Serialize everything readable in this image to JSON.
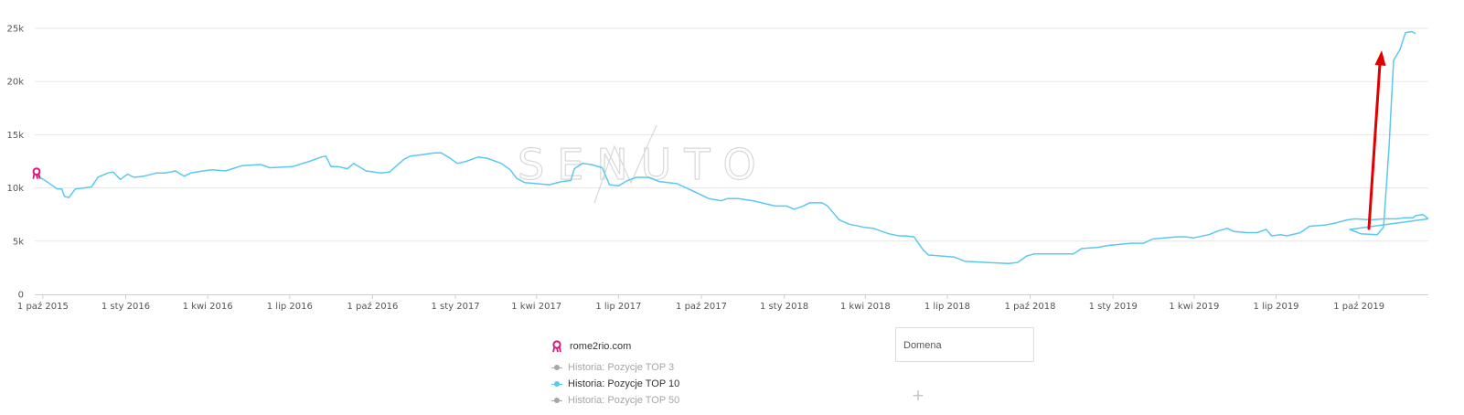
{
  "chart_data": {
    "type": "line",
    "watermark": "SENUTO",
    "y_ticks": [
      "0",
      "5k",
      "10k",
      "15k",
      "20k",
      "25k"
    ],
    "ylim": [
      0,
      25000
    ],
    "x_tick_labels": [
      "1 paź 2015",
      "1 sty 2016",
      "1 kwi 2016",
      "1 lip 2016",
      "1 paź 2016",
      "1 sty 2017",
      "1 kwi 2017",
      "1 lip 2017",
      "1 paź 2017",
      "1 sty 2018",
      "1 kwi 2018",
      "1 lip 2018",
      "1 paź 2018",
      "1 sty 2019",
      "1 kwi 2019",
      "1 lip 2019",
      "1 paź 2019"
    ],
    "xlim": [
      "2015-09-22",
      "2019-12-17"
    ],
    "grid": true,
    "series": [
      {
        "name": "Historia: Pozycje TOP 10",
        "color": "#5bc8f0",
        "points": [
          [
            "2015-09-24",
            11200
          ],
          [
            "2015-10-07",
            10500
          ],
          [
            "2015-10-17",
            9900
          ],
          [
            "2015-10-22",
            9900
          ],
          [
            "2015-10-25",
            9200
          ],
          [
            "2015-10-30",
            9100
          ],
          [
            "2015-11-06",
            9900
          ],
          [
            "2015-11-16",
            10000
          ],
          [
            "2015-11-24",
            10100
          ],
          [
            "2015-12-01",
            11000
          ],
          [
            "2015-12-12",
            11400
          ],
          [
            "2015-12-18",
            11500
          ],
          [
            "2015-12-26",
            10800
          ],
          [
            "2016-01-03",
            11300
          ],
          [
            "2016-01-10",
            11000
          ],
          [
            "2016-01-21",
            11100
          ],
          [
            "2016-02-04",
            11400
          ],
          [
            "2016-02-14",
            11400
          ],
          [
            "2016-02-25",
            11600
          ],
          [
            "2016-03-06",
            11100
          ],
          [
            "2016-03-13",
            11400
          ],
          [
            "2016-03-27",
            11600
          ],
          [
            "2016-04-06",
            11700
          ],
          [
            "2016-04-21",
            11600
          ],
          [
            "2016-05-09",
            12100
          ],
          [
            "2016-05-30",
            12200
          ],
          [
            "2016-06-09",
            11900
          ],
          [
            "2016-07-04",
            12000
          ],
          [
            "2016-07-23",
            12500
          ],
          [
            "2016-08-05",
            12900
          ],
          [
            "2016-08-10",
            13000
          ],
          [
            "2016-08-16",
            12000
          ],
          [
            "2016-08-24",
            12000
          ],
          [
            "2016-09-03",
            11800
          ],
          [
            "2016-09-10",
            12300
          ],
          [
            "2016-09-24",
            11600
          ],
          [
            "2016-10-10",
            11400
          ],
          [
            "2016-10-20",
            11500
          ],
          [
            "2016-11-05",
            12700
          ],
          [
            "2016-11-12",
            13000
          ],
          [
            "2016-11-23",
            13100
          ],
          [
            "2016-12-09",
            13300
          ],
          [
            "2016-12-16",
            13300
          ],
          [
            "2016-12-26",
            12800
          ],
          [
            "2017-01-03",
            12300
          ],
          [
            "2017-01-13",
            12500
          ],
          [
            "2017-01-26",
            12900
          ],
          [
            "2017-02-05",
            12800
          ],
          [
            "2017-02-21",
            12300
          ],
          [
            "2017-03-03",
            11700
          ],
          [
            "2017-03-10",
            10900
          ],
          [
            "2017-03-19",
            10500
          ],
          [
            "2017-04-15",
            10300
          ],
          [
            "2017-04-29",
            10600
          ],
          [
            "2017-05-09",
            10700
          ],
          [
            "2017-05-13",
            11800
          ],
          [
            "2017-05-22",
            12300
          ],
          [
            "2017-06-01",
            12200
          ],
          [
            "2017-06-13",
            11900
          ],
          [
            "2017-06-21",
            10300
          ],
          [
            "2017-07-01",
            10200
          ],
          [
            "2017-07-11",
            10700
          ],
          [
            "2017-07-21",
            11000
          ],
          [
            "2017-08-04",
            11000
          ],
          [
            "2017-08-15",
            10600
          ],
          [
            "2017-09-04",
            10400
          ],
          [
            "2017-09-27",
            9500
          ],
          [
            "2017-10-09",
            9000
          ],
          [
            "2017-10-23",
            8800
          ],
          [
            "2017-10-30",
            9000
          ],
          [
            "2017-11-11",
            9000
          ],
          [
            "2017-11-27",
            8800
          ],
          [
            "2017-12-22",
            8300
          ],
          [
            "2018-01-04",
            8300
          ],
          [
            "2018-01-12",
            8000
          ],
          [
            "2018-01-22",
            8300
          ],
          [
            "2018-01-29",
            8600
          ],
          [
            "2018-02-12",
            8600
          ],
          [
            "2018-02-18",
            8300
          ],
          [
            "2018-02-26",
            7500
          ],
          [
            "2018-03-03",
            7000
          ],
          [
            "2018-03-14",
            6600
          ],
          [
            "2018-03-31",
            6300
          ],
          [
            "2018-04-10",
            6200
          ],
          [
            "2018-04-20",
            5900
          ],
          [
            "2018-04-27",
            5700
          ],
          [
            "2018-05-08",
            5500
          ],
          [
            "2018-05-15",
            5500
          ],
          [
            "2018-05-25",
            5400
          ],
          [
            "2018-06-04",
            4200
          ],
          [
            "2018-06-10",
            3700
          ],
          [
            "2018-06-25",
            3600
          ],
          [
            "2018-07-09",
            3500
          ],
          [
            "2018-07-21",
            3100
          ],
          [
            "2018-08-14",
            3000
          ],
          [
            "2018-09-07",
            2900
          ],
          [
            "2018-09-17",
            3000
          ],
          [
            "2018-09-27",
            3600
          ],
          [
            "2018-10-05",
            3800
          ],
          [
            "2018-10-30",
            3800
          ],
          [
            "2018-11-18",
            3800
          ],
          [
            "2018-11-27",
            4300
          ],
          [
            "2018-12-14",
            4400
          ],
          [
            "2018-12-27",
            4600
          ],
          [
            "2019-01-21",
            4800
          ],
          [
            "2019-02-04",
            4800
          ],
          [
            "2019-02-14",
            5200
          ],
          [
            "2019-03-12",
            5400
          ],
          [
            "2019-03-23",
            5400
          ],
          [
            "2019-03-31",
            5300
          ],
          [
            "2019-04-17",
            5600
          ],
          [
            "2019-04-29",
            6000
          ],
          [
            "2019-05-08",
            6200
          ],
          [
            "2019-05-15",
            5900
          ],
          [
            "2019-05-30",
            5800
          ],
          [
            "2019-06-10",
            5800
          ],
          [
            "2019-06-20",
            6100
          ],
          [
            "2019-06-26",
            5500
          ],
          [
            "2019-07-06",
            5600
          ],
          [
            "2019-07-13",
            5500
          ],
          [
            "2019-07-28",
            5800
          ],
          [
            "2019-08-07",
            6400
          ],
          [
            "2019-08-24",
            6500
          ],
          [
            "2019-09-05",
            6700
          ],
          [
            "2019-09-18",
            7000
          ],
          [
            "2019-09-27",
            7100
          ],
          [
            "2019-10-14",
            7000
          ],
          [
            "2019-10-29",
            7100
          ],
          [
            "2019-11-12",
            7100
          ],
          [
            "2019-11-20",
            7200
          ],
          [
            "2019-11-30",
            7200
          ],
          [
            "2019-12-03",
            7400
          ],
          [
            "2019-12-11",
            7500
          ],
          [
            "2019-12-17",
            7100
          ]
        ]
      }
    ]
  },
  "legend": {
    "domain": "rome2rio.com",
    "entries": [
      {
        "label": "Historia: Pozycje TOP 3",
        "active": false
      },
      {
        "label": "Historia: Pozycje TOP 10",
        "active": true
      },
      {
        "label": "Historia: Pozycje TOP 50",
        "active": false
      }
    ]
  },
  "domain_input": {
    "placeholder": "Domena"
  },
  "icons": {
    "domain_icon": "ribbon-icon",
    "add": "plus-icon",
    "annotation": "red-arrow-annotation"
  },
  "colors": {
    "line": "#5bc8f0",
    "domain_icon": "#d6197c",
    "arrow": "#e00000"
  }
}
